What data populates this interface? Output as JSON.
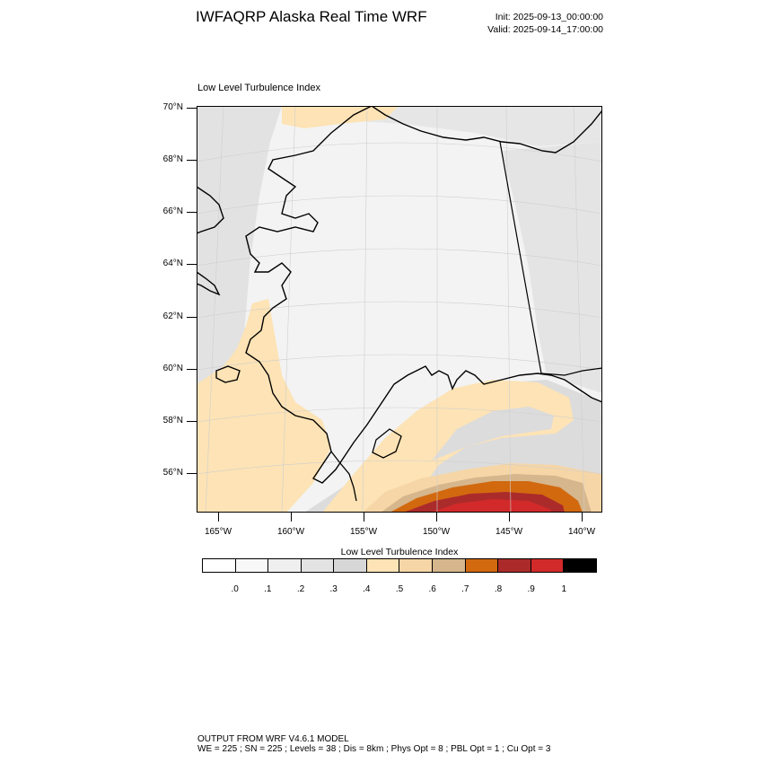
{
  "header": {
    "title": "IWFAQRP Alaska Real Time WRF",
    "init": "Init: 2025-09-13_00:00:00",
    "valid": "Valid: 2025-09-14_17:00:00"
  },
  "map": {
    "title": "Low Level Turbulence Index",
    "lat_labels": [
      "70°N",
      "68°N",
      "66°N",
      "64°N",
      "62°N",
      "60°N",
      "58°N",
      "56°N"
    ],
    "lat_values": [
      70,
      68,
      66,
      64,
      62,
      60,
      58,
      56
    ],
    "lon_labels": [
      "165°W",
      "160°W",
      "155°W",
      "150°W",
      "145°W",
      "140°W"
    ],
    "lon_values": [
      -165,
      -160,
      -155,
      -150,
      -145,
      -140
    ],
    "colors": {
      "background": "#f3f3f3",
      "light_gray": "#e2e2e2",
      "mid_gray": "#d6d6d6",
      "bisque": "#fde3b5",
      "wheat": "#f6d6a6",
      "tan": "#d6b68c",
      "orange": "#d2690f",
      "brown": "#ab2b2b",
      "red": "#d22a2a",
      "coast": "#000000"
    }
  },
  "colorbar": {
    "title": "Low Level Turbulence Index",
    "levels": [
      ".0",
      ".1",
      ".2",
      ".3",
      ".4",
      ".5",
      ".6",
      ".7",
      ".8",
      ".9",
      "1"
    ],
    "colors": [
      "#ffffff",
      "#f8f8f8",
      "#efefef",
      "#e3e3e3",
      "#d7d7d7",
      "#fde3b5",
      "#f6d6a6",
      "#d6b68c",
      "#d2690f",
      "#ab2b2b",
      "#d22a2a",
      "#000000"
    ]
  },
  "footer": {
    "line1": "OUTPUT FROM WRF V4.6.1 MODEL",
    "line2": "WE = 225 ; SN = 225 ; Levels = 38 ; Dis = 8km ; Phys Opt = 8 ; PBL Opt = 1 ; Cu Opt = 3"
  }
}
